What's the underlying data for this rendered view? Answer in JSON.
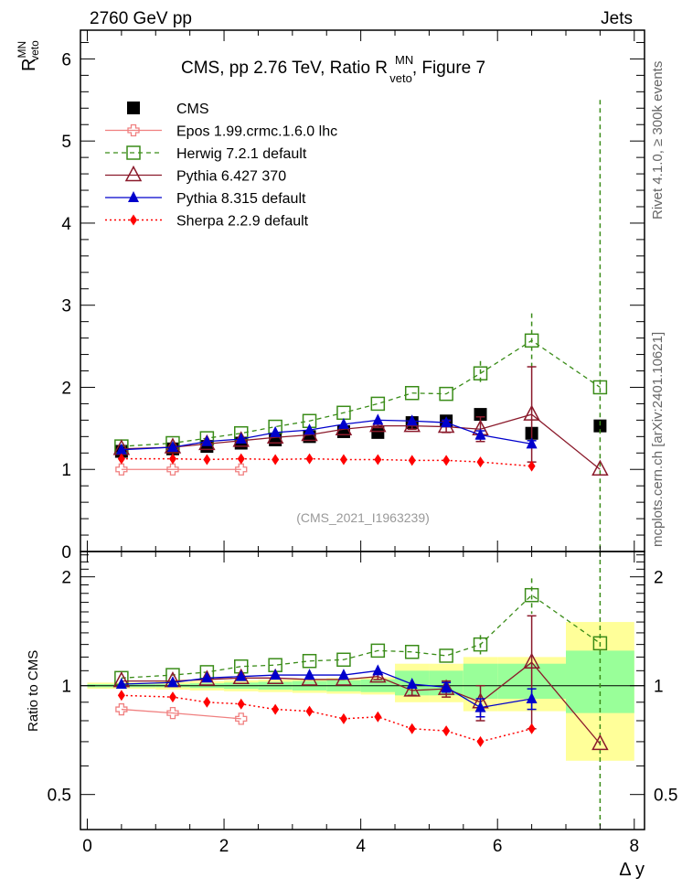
{
  "chart_data": [
    {
      "type": "scatter",
      "panel": "main",
      "title": "CMS, pp 2.76 TeV, Ratio R MN veto, Figure 7",
      "title_parts": {
        "prefix": "CMS, pp 2.76 TeV, Ratio R",
        "sup": "MN",
        "sub": "veto",
        "suffix": ", Figure 7"
      },
      "header_left": "2760 GeV pp",
      "header_right": "Jets",
      "ylabel": {
        "base": "R",
        "sup": "MN",
        "sub": "veto"
      },
      "xlabel": "Δ y",
      "xlim": [
        -0.1,
        8.15
      ],
      "ylim": [
        0,
        6.35
      ],
      "yticks": [
        0,
        1,
        2,
        3,
        4,
        5,
        6
      ],
      "xticks": [
        0,
        2,
        4,
        6,
        8
      ],
      "analysis_label": "(CMS_2021_I1963239)",
      "side_label_top": "Rivet 4.1.0, ≥ 300k events",
      "side_label_bottom": "mcplots.cern.ch [arXiv:2401.10621]",
      "legend_position": "top-left",
      "series": [
        {
          "name": "CMS",
          "marker": "filled-square",
          "line": "none",
          "color": "#000000",
          "x": [
            0.5,
            1.25,
            1.75,
            2.25,
            2.75,
            3.25,
            3.75,
            4.25,
            4.75,
            5.25,
            5.75,
            6.5,
            7.5
          ],
          "y": [
            1.22,
            1.25,
            1.28,
            1.32,
            1.36,
            1.4,
            1.46,
            1.45,
            1.57,
            1.59,
            1.67,
            1.44,
            1.53
          ]
        },
        {
          "name": "Epos 1.99.crmc.1.6.0 lhc",
          "marker": "open-cross",
          "line": "solid",
          "color": "#f08080",
          "x": [
            0.5,
            1.25,
            2.25
          ],
          "y": [
            1.0,
            1.0,
            1.0
          ]
        },
        {
          "name": "Herwig 7.2.1 default",
          "marker": "open-square",
          "line": "dashed",
          "color": "#3a8c18",
          "x": [
            0.5,
            1.25,
            1.75,
            2.25,
            2.75,
            3.25,
            3.75,
            4.25,
            4.75,
            5.25,
            5.75,
            6.5,
            7.5
          ],
          "y": [
            1.28,
            1.32,
            1.38,
            1.44,
            1.52,
            1.59,
            1.69,
            1.8,
            1.93,
            1.92,
            2.17,
            2.57,
            2.0
          ],
          "yerr": [
            0,
            0,
            0,
            0,
            0,
            0,
            0,
            0,
            0,
            0,
            0.15,
            0.33,
            3.5
          ]
        },
        {
          "name": "Pythia 6.427 370",
          "marker": "open-triangle",
          "line": "solid",
          "color": "#8b1a2b",
          "x": [
            0.5,
            1.25,
            1.75,
            2.25,
            2.75,
            3.25,
            3.75,
            4.25,
            4.75,
            5.25,
            5.75,
            6.5,
            7.5
          ],
          "y": [
            1.25,
            1.27,
            1.31,
            1.35,
            1.39,
            1.42,
            1.49,
            1.53,
            1.53,
            1.52,
            1.49,
            1.67,
            1.0
          ],
          "yerr": [
            0,
            0,
            0,
            0,
            0,
            0,
            0,
            0.02,
            0.04,
            0.07,
            0.15,
            0.58,
            0
          ]
        },
        {
          "name": "Pythia 8.315 default",
          "marker": "filled-triangle",
          "line": "solid",
          "color": "#0000cc",
          "x": [
            0.5,
            1.25,
            1.75,
            2.25,
            2.75,
            3.25,
            3.75,
            4.25,
            4.75,
            5.25,
            5.75,
            6.5
          ],
          "y": [
            1.24,
            1.27,
            1.34,
            1.37,
            1.45,
            1.48,
            1.55,
            1.6,
            1.59,
            1.57,
            1.42,
            1.31
          ],
          "yerr": [
            0,
            0,
            0,
            0,
            0,
            0,
            0,
            0,
            0,
            0.03,
            0.05,
            0.04
          ]
        },
        {
          "name": "Sherpa 2.2.9 default",
          "marker": "filled-diamond",
          "line": "dotted",
          "color": "#ff0000",
          "x": [
            0.5,
            1.25,
            1.75,
            2.25,
            2.75,
            3.25,
            3.75,
            4.25,
            4.75,
            5.25,
            5.75,
            6.5
          ],
          "y": [
            1.13,
            1.13,
            1.12,
            1.13,
            1.12,
            1.13,
            1.12,
            1.12,
            1.11,
            1.11,
            1.09,
            1.04
          ]
        }
      ]
    },
    {
      "type": "scatter",
      "panel": "ratio",
      "ylabel": "Ratio to CMS",
      "xlabel": "Δ y",
      "xlim": [
        -0.1,
        8.15
      ],
      "ylim": [
        0.4,
        2.35
      ],
      "yscale": "log",
      "yticks": [
        0.5,
        1,
        2
      ],
      "xticks": [
        0,
        2,
        4,
        6,
        8
      ],
      "bands": {
        "x_edges": [
          0,
          1,
          1.5,
          2,
          2.5,
          3,
          3.5,
          4,
          4.5,
          5,
          5.5,
          6,
          7,
          8
        ],
        "green_lo": [
          0.99,
          0.99,
          0.985,
          0.98,
          0.975,
          0.97,
          0.965,
          0.96,
          0.94,
          0.94,
          0.92,
          0.92,
          0.84
        ],
        "green_hi": [
          1.01,
          1.01,
          1.015,
          1.02,
          1.025,
          1.03,
          1.035,
          1.04,
          1.1,
          1.1,
          1.15,
          1.15,
          1.25
        ],
        "yellow_lo": [
          0.98,
          0.975,
          0.97,
          0.965,
          0.96,
          0.955,
          0.95,
          0.945,
          0.9,
          0.9,
          0.85,
          0.85,
          0.62
        ],
        "yellow_hi": [
          1.02,
          1.025,
          1.03,
          1.035,
          1.04,
          1.045,
          1.05,
          1.055,
          1.15,
          1.15,
          1.2,
          1.2,
          1.5
        ],
        "green_color": "#99ff99",
        "yellow_color": "#ffff99"
      },
      "series": [
        {
          "name": "Epos 1.99.crmc.1.6.0 lhc",
          "x": [
            0.5,
            1.25,
            2.25
          ],
          "y": [
            0.86,
            0.84,
            0.81
          ]
        },
        {
          "name": "Herwig 7.2.1 default",
          "x": [
            0.5,
            1.25,
            1.75,
            2.25,
            2.75,
            3.25,
            3.75,
            4.25,
            4.75,
            5.25,
            5.75,
            6.5,
            7.5
          ],
          "y": [
            1.05,
            1.07,
            1.09,
            1.13,
            1.14,
            1.17,
            1.18,
            1.25,
            1.24,
            1.21,
            1.3,
            1.78,
            1.31
          ],
          "yerr": [
            0,
            0,
            0,
            0,
            0,
            0,
            0,
            0,
            0,
            0,
            0.08,
            0.2,
            2.0
          ]
        },
        {
          "name": "Pythia 6.427 370",
          "x": [
            0.5,
            1.25,
            1.75,
            2.25,
            2.75,
            3.25,
            3.75,
            4.25,
            4.75,
            5.25,
            5.75,
            6.5,
            7.5
          ],
          "y": [
            1.03,
            1.03,
            1.04,
            1.05,
            1.05,
            1.04,
            1.04,
            1.06,
            0.97,
            0.98,
            0.9,
            1.16,
            0.69
          ],
          "yerr": [
            0,
            0,
            0,
            0,
            0,
            0,
            0,
            0.02,
            0.03,
            0.05,
            0.1,
            0.4,
            0
          ]
        },
        {
          "name": "Pythia 8.315 default",
          "x": [
            0.5,
            1.25,
            1.75,
            2.25,
            2.75,
            3.25,
            3.75,
            4.25,
            4.75,
            5.25,
            5.75,
            6.5
          ],
          "y": [
            1.01,
            1.02,
            1.05,
            1.06,
            1.07,
            1.07,
            1.07,
            1.1,
            1.01,
            0.99,
            0.87,
            0.92
          ],
          "yerr": [
            0,
            0,
            0,
            0,
            0,
            0,
            0,
            0,
            0,
            0.03,
            0.05,
            0.06
          ]
        },
        {
          "name": "Sherpa 2.2.9 default",
          "x": [
            0.5,
            1.25,
            1.75,
            2.25,
            2.75,
            3.25,
            3.75,
            4.25,
            4.75,
            5.25,
            5.75,
            6.5
          ],
          "y": [
            0.94,
            0.93,
            0.9,
            0.89,
            0.86,
            0.85,
            0.81,
            0.82,
            0.76,
            0.75,
            0.7,
            0.76
          ]
        }
      ]
    }
  ]
}
